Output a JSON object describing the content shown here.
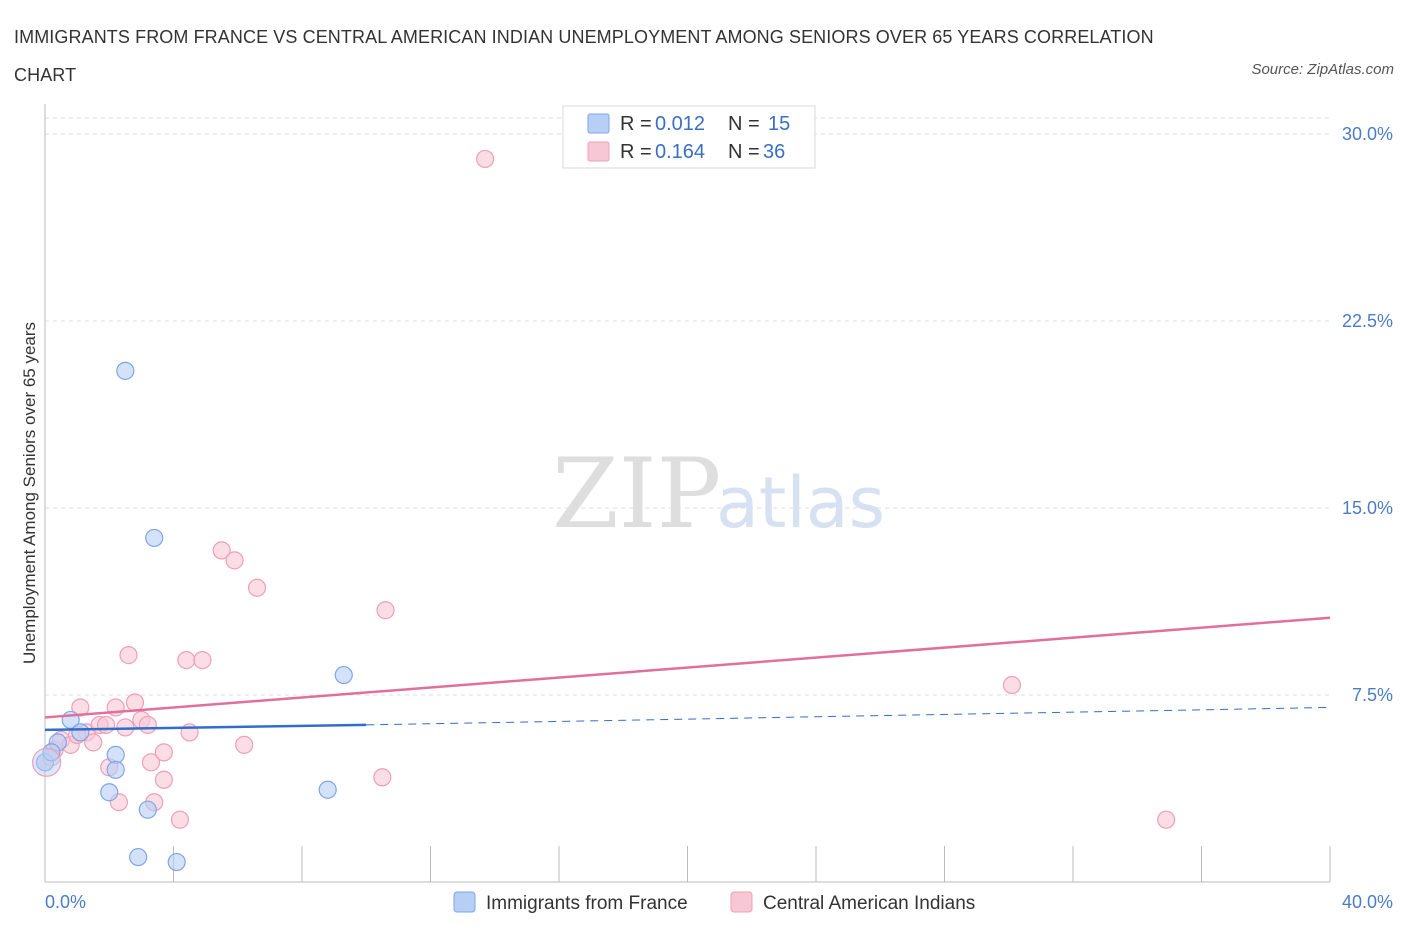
{
  "title": "IMMIGRANTS FROM FRANCE VS CENTRAL AMERICAN INDIAN UNEMPLOYMENT AMONG SENIORS OVER 65 YEARS CORRELATION CHART",
  "source": "Source: ZipAtlas.com",
  "watermark": {
    "zip": "ZIP",
    "atlas": "atlas"
  },
  "colors": {
    "blue_fill": "#b8cff5",
    "blue_stroke": "#7ea6e6",
    "blue_line": "#2f6fcb",
    "pink_fill": "#f8c7d5",
    "pink_stroke": "#ef9fb8",
    "pink_line": "#e0709a",
    "grid": "#dddddd",
    "axis_text": "#4a7cc7"
  },
  "legend": {
    "row1": {
      "r_label": "R =",
      "r_value": "0.012",
      "n_label": "N =",
      "n_value": "15"
    },
    "row2": {
      "r_label": "R =",
      "r_value": "0.164",
      "n_label": "N =",
      "n_value": "36"
    }
  },
  "chart_data": {
    "type": "scatter",
    "title": "IMMIGRANTS FROM FRANCE VS CENTRAL AMERICAN INDIAN UNEMPLOYMENT AMONG SENIORS OVER 65 YEARS CORRELATION CHART",
    "xlabel": "",
    "ylabel": "Unemployment Among Seniors over 65 years",
    "xlim": [
      0,
      40
    ],
    "ylim": [
      0,
      30
    ],
    "x_tick_labels": [
      "0.0%",
      "40.0%"
    ],
    "y_ticks": [
      7.5,
      15.0,
      22.5,
      30.0
    ],
    "y_tick_labels": [
      "7.5%",
      "15.0%",
      "22.5%",
      "30.0%"
    ],
    "grid": true,
    "legend_position": "top-center",
    "series": [
      {
        "name": "Immigrants from France",
        "color": "#b8cff5",
        "r": 0.012,
        "n": 15,
        "points": [
          [
            0.0,
            4.8
          ],
          [
            0.4,
            5.6
          ],
          [
            0.8,
            6.5
          ],
          [
            1.1,
            6.0
          ],
          [
            2.2,
            5.1
          ],
          [
            2.2,
            4.5
          ],
          [
            2.5,
            20.5
          ],
          [
            2.0,
            3.6
          ],
          [
            3.4,
            13.8
          ],
          [
            3.2,
            2.9
          ],
          [
            2.9,
            1.0
          ],
          [
            4.1,
            0.8
          ],
          [
            8.8,
            3.7
          ],
          [
            9.3,
            8.3
          ],
          [
            0.2,
            5.2
          ]
        ],
        "trend": {
          "x1": 0,
          "y1": 6.1,
          "x2": 10.0,
          "y2": 6.3,
          "dash_to_x": 40.0,
          "dash_to_y": 7.0
        }
      },
      {
        "name": "Central American Indians",
        "color": "#f8c7d5",
        "r": 0.164,
        "n": 36,
        "points": [
          [
            0.0,
            4.8
          ],
          [
            0.3,
            5.3
          ],
          [
            0.5,
            5.7
          ],
          [
            0.8,
            5.5
          ],
          [
            1.1,
            7.0
          ],
          [
            1.3,
            6.0
          ],
          [
            1.5,
            5.6
          ],
          [
            1.7,
            6.3
          ],
          [
            1.9,
            6.3
          ],
          [
            2.0,
            4.6
          ],
          [
            2.2,
            7.0
          ],
          [
            2.3,
            3.2
          ],
          [
            2.5,
            6.2
          ],
          [
            2.6,
            9.1
          ],
          [
            2.8,
            7.2
          ],
          [
            3.0,
            6.5
          ],
          [
            3.2,
            6.3
          ],
          [
            3.3,
            4.8
          ],
          [
            3.4,
            3.2
          ],
          [
            3.7,
            5.2
          ],
          [
            3.7,
            4.1
          ],
          [
            4.2,
            2.5
          ],
          [
            4.4,
            8.9
          ],
          [
            4.5,
            6.0
          ],
          [
            4.9,
            8.9
          ],
          [
            5.5,
            13.3
          ],
          [
            5.9,
            12.9
          ],
          [
            6.2,
            5.5
          ],
          [
            6.6,
            11.8
          ],
          [
            10.5,
            4.2
          ],
          [
            10.6,
            10.9
          ],
          [
            13.7,
            29.0
          ],
          [
            30.1,
            7.9
          ],
          [
            34.9,
            2.5
          ],
          [
            0.2,
            5.0
          ],
          [
            1.0,
            5.9
          ]
        ],
        "trend": {
          "x1": 0,
          "y1": 6.6,
          "x2": 40.0,
          "y2": 10.6
        }
      }
    ]
  }
}
